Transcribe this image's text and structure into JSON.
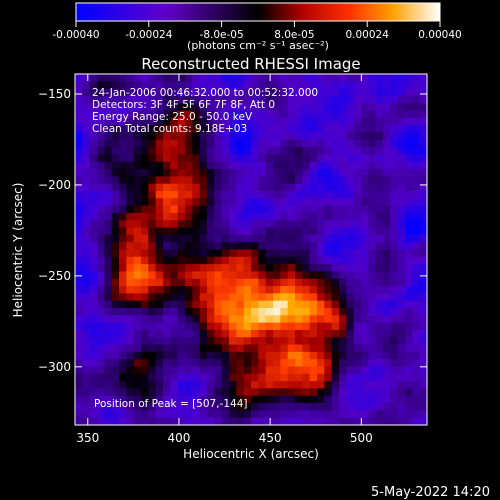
{
  "chart_data": {
    "type": "heatmap",
    "title": "Reconstructed RHESSI Image",
    "xlabel": "Heliocentric X (arcsec)",
    "ylabel": "Heliocentric Y (arcsec)",
    "xlim": [
      343,
      536
    ],
    "ylim": [
      -332,
      -139
    ],
    "xticks": [
      350,
      400,
      450,
      500
    ],
    "yticks": [
      -150,
      -200,
      -250,
      -300
    ],
    "colorbar": {
      "min": -0.0004,
      "max": 0.0004,
      "tick_labels": [
        "-0.00040",
        "-0.00024",
        "-8.0e-05",
        "8.0e-05",
        "0.00024",
        "0.00040"
      ],
      "unit_label": "(photons cm⁻² s⁻¹ asec⁻²)"
    },
    "annotations": [
      "24-Jan-2006 00:46:32.000 to 00:52:32.000",
      "Detectors: 3F 4F 5F 6F 7F 8F, Att 0",
      "Energy Range: 25.0 - 50.0 keV",
      "Clean    Total counts: 9.18E+03"
    ],
    "peak_label": "Position of Peak = [507,-144]",
    "colors": {
      "background": "#000000",
      "text": "#ffffff"
    }
  },
  "footer": {
    "date": "5-May-2022 14:20"
  }
}
